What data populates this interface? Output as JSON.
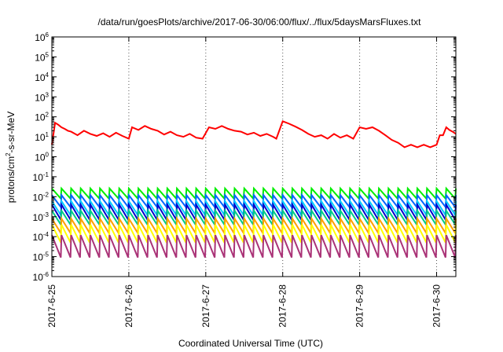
{
  "chart_data": {
    "type": "line",
    "title": "/data/run/goesPlots/archive/2017-06-30/06:00/flux/../flux/5daysMarsFluxes.txt",
    "xlabel": "Coordinated Universal Time (UTC)",
    "ylabel_base": "protons/cm",
    "ylabel_sup": "2",
    "ylabel_rest": "-s-sr-MeV",
    "yscale": "log",
    "ylim": [
      1e-06,
      1000000.0
    ],
    "xlim": [
      "2017-06-25T00:00",
      "2017-06-30T06:00"
    ],
    "grid": true,
    "legend": "none",
    "x_ticks": [
      "2017-6-25",
      "2017-6-26",
      "2017-6-27",
      "2017-6-28",
      "2017-6-29",
      "2017-6-30"
    ],
    "y_tick_exponents": [
      -6,
      -5,
      -4,
      -3,
      -2,
      -1,
      0,
      1,
      2,
      3,
      4,
      5,
      6
    ],
    "series": [
      {
        "color": "#ff0000",
        "x": [
          "2017-06-25T00:00",
          "2017-06-25T01:00",
          "2017-06-25T02:00",
          "2017-06-25T03:00",
          "2017-06-25T04:00",
          "2017-06-25T05:00",
          "2017-06-25T06:00",
          "2017-06-25T08:00",
          "2017-06-25T10:00",
          "2017-06-25T12:00",
          "2017-06-25T14:00",
          "2017-06-25T16:00",
          "2017-06-25T18:00",
          "2017-06-25T20:00",
          "2017-06-25T22:00",
          "2017-06-26T00:00",
          "2017-06-26T01:00",
          "2017-06-26T03:00",
          "2017-06-26T05:00",
          "2017-06-26T07:00",
          "2017-06-26T09:00",
          "2017-06-26T11:00",
          "2017-06-26T13:00",
          "2017-06-26T15:00",
          "2017-06-26T17:00",
          "2017-06-26T19:00",
          "2017-06-26T21:00",
          "2017-06-26T23:00",
          "2017-06-27T01:00",
          "2017-06-27T03:00",
          "2017-06-27T05:00",
          "2017-06-27T07:00",
          "2017-06-27T09:00",
          "2017-06-27T11:00",
          "2017-06-27T13:00",
          "2017-06-27T15:00",
          "2017-06-27T17:00",
          "2017-06-27T19:00",
          "2017-06-27T21:00",
          "2017-06-27T22:00",
          "2017-06-28T00:00",
          "2017-06-28T02:00",
          "2017-06-28T04:00",
          "2017-06-28T06:00",
          "2017-06-28T08:00",
          "2017-06-28T10:00",
          "2017-06-28T12:00",
          "2017-06-28T14:00",
          "2017-06-28T16:00",
          "2017-06-28T18:00",
          "2017-06-28T20:00",
          "2017-06-28T22:00",
          "2017-06-29T00:00",
          "2017-06-29T02:00",
          "2017-06-29T04:00",
          "2017-06-29T06:00",
          "2017-06-29T08:00",
          "2017-06-29T10:00",
          "2017-06-29T12:00",
          "2017-06-29T14:00",
          "2017-06-29T16:00",
          "2017-06-29T18:00",
          "2017-06-29T20:00",
          "2017-06-29T22:00",
          "2017-06-30T00:00",
          "2017-06-30T01:00",
          "2017-06-30T02:00",
          "2017-06-30T03:00",
          "2017-06-30T04:00",
          "2017-06-30T05:00",
          "2017-06-30T06:00"
        ],
        "y": [
          4,
          50,
          40,
          30,
          25,
          20,
          18,
          12,
          20,
          14,
          11,
          15,
          10,
          16,
          11,
          8,
          30,
          22,
          35,
          25,
          20,
          13,
          18,
          12,
          10,
          14,
          9,
          8,
          30,
          25,
          35,
          25,
          20,
          18,
          13,
          16,
          11,
          14,
          10,
          8,
          60,
          45,
          32,
          22,
          14,
          10,
          12,
          8,
          14,
          9,
          12,
          8,
          30,
          25,
          30,
          20,
          12,
          7,
          5,
          3,
          4,
          3,
          4,
          3,
          4,
          12,
          12,
          30,
          22,
          18,
          14
        ]
      }
    ],
    "band_series": [
      {
        "color": "#00ee00",
        "period_hours": 3,
        "peak": 0.026,
        "trough": 0.008
      },
      {
        "color": "#0066ff",
        "period_hours": 3,
        "peak": 0.012,
        "trough": 0.003
      },
      {
        "color": "#00ccff",
        "period_hours": 3,
        "peak": 0.006,
        "trough": 0.0012
      },
      {
        "color": "#0000cc",
        "period_hours": 3,
        "peak": 0.004,
        "trough": 0.0007
      },
      {
        "color": "#00cc88",
        "period_hours": 3,
        "peak": 0.002,
        "trough": 0.0004
      },
      {
        "color": "#ffa000",
        "period_hours": 3,
        "peak": 0.0008,
        "trough": 0.00015
      },
      {
        "color": "#ffff00",
        "period_hours": 3,
        "peak": 0.0004,
        "trough": 5e-05
      },
      {
        "color": "#aa3377",
        "period_hours": 3,
        "peak": 0.00012,
        "trough": 9e-06
      }
    ]
  }
}
